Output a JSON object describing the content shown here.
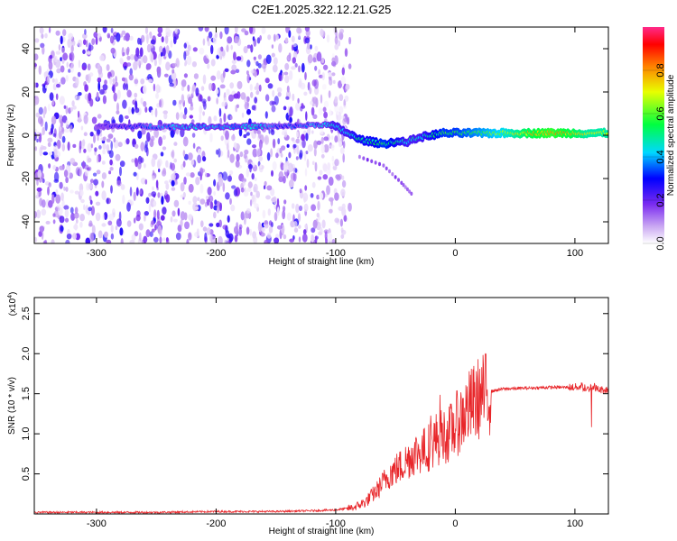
{
  "title": "C2E1.2025.322.12.21.G25",
  "chart_data": [
    {
      "type": "heatmap",
      "xlabel": "Height of straight line (km)",
      "ylabel": "Frequency (Hz)",
      "xlim": [
        -352,
        128
      ],
      "ylim": [
        -50,
        50
      ],
      "x_ticks": [
        -300,
        -200,
        -100,
        0,
        100
      ],
      "x_tick_labels": [
        "-300",
        "-200",
        "-100",
        "0",
        "100"
      ],
      "y_ticks": [
        -40,
        -20,
        0,
        20,
        40
      ],
      "y_tick_labels": [
        "-40",
        "-20",
        "0",
        "20",
        "40"
      ],
      "colorbar": {
        "label": "Normalized spectral amplitude",
        "range": [
          0,
          1
        ],
        "ticks": [
          0.0,
          0.2,
          0.4,
          0.6,
          0.8
        ],
        "tick_labels": [
          "0.0",
          "0.2",
          "0.4",
          "0.6",
          "0.8"
        ],
        "colormap": [
          "#ffffff",
          "#8a2be2",
          "#0000ff",
          "#00ffff",
          "#00ff00",
          "#ffff00",
          "#ff8000",
          "#ff0000",
          "#ff1493"
        ]
      },
      "noise_region": {
        "x_range": [
          -352,
          -100
        ],
        "mean_amplitude": 0.12
      },
      "ridge": [
        {
          "x": -300,
          "y": 4,
          "amp": 0.18
        },
        {
          "x": -250,
          "y": 4,
          "amp": 0.35
        },
        {
          "x": -230,
          "y": 4,
          "amp": 0.4
        },
        {
          "x": -160,
          "y": 4,
          "amp": 0.4
        },
        {
          "x": -145,
          "y": 4,
          "amp": 0.3
        },
        {
          "x": -110,
          "y": 5,
          "amp": 0.4
        },
        {
          "x": -100,
          "y": 4,
          "amp": 0.45
        },
        {
          "x": -90,
          "y": 1,
          "amp": 0.45
        },
        {
          "x": -80,
          "y": -2,
          "amp": 0.5
        },
        {
          "x": -70,
          "y": -3,
          "amp": 0.5
        },
        {
          "x": -60,
          "y": -4,
          "amp": 0.55
        },
        {
          "x": -50,
          "y": -3,
          "amp": 0.5
        },
        {
          "x": -40,
          "y": -3,
          "amp": 0.45
        },
        {
          "x": -30,
          "y": -1,
          "amp": 0.45
        },
        {
          "x": -20,
          "y": 0,
          "amp": 0.5
        },
        {
          "x": -10,
          "y": 1,
          "amp": 0.55
        },
        {
          "x": 0,
          "y": 1,
          "amp": 0.55
        },
        {
          "x": 20,
          "y": 1,
          "amp": 0.6
        },
        {
          "x": 40,
          "y": 1,
          "amp": 0.65
        },
        {
          "x": 60,
          "y": 1,
          "amp": 0.75
        },
        {
          "x": 80,
          "y": 1,
          "amp": 0.8
        },
        {
          "x": 100,
          "y": 1,
          "amp": 0.75
        },
        {
          "x": 110,
          "y": 1,
          "amp": 0.7
        },
        {
          "x": 128,
          "y": 1,
          "amp": 0.7
        }
      ],
      "branch": [
        {
          "x": -80,
          "y": -10
        },
        {
          "x": -60,
          "y": -14
        },
        {
          "x": -45,
          "y": -22
        },
        {
          "x": -35,
          "y": -28
        }
      ]
    },
    {
      "type": "line",
      "xlabel": "Height of straight line (km)",
      "ylabel": "SNR (10 * v/v)",
      "y_scale_label": "(x10",
      "y_scale_exp": "4",
      "xlim": [
        -352,
        128
      ],
      "ylim": [
        0,
        2.7
      ],
      "x_ticks": [
        -300,
        -200,
        -100,
        0,
        100
      ],
      "x_tick_labels": [
        "-300",
        "-200",
        "-100",
        "0",
        "100"
      ],
      "y_ticks": [
        0.5,
        1.0,
        1.5,
        2.0,
        2.5
      ],
      "y_tick_labels": [
        "0.5",
        "1.0",
        "1.5",
        "2.0",
        "2.5"
      ],
      "series": [
        {
          "color": "#e8262a",
          "x": [
            -352,
            -300,
            -250,
            -200,
            -150,
            -120,
            -100,
            -85,
            -75,
            -65,
            -55,
            -45,
            -35,
            -25,
            -15,
            -5,
            0,
            10,
            20,
            30,
            40,
            60,
            80,
            100,
            105,
            110,
            115,
            120,
            128
          ],
          "y": [
            0.02,
            0.02,
            0.02,
            0.03,
            0.03,
            0.04,
            0.05,
            0.08,
            0.15,
            0.3,
            0.5,
            0.6,
            0.75,
            0.8,
            0.95,
            1.0,
            1.1,
            1.3,
            1.45,
            1.53,
            1.56,
            1.57,
            1.58,
            1.58,
            1.6,
            1.55,
            1.6,
            1.55,
            1.55
          ]
        }
      ]
    }
  ]
}
